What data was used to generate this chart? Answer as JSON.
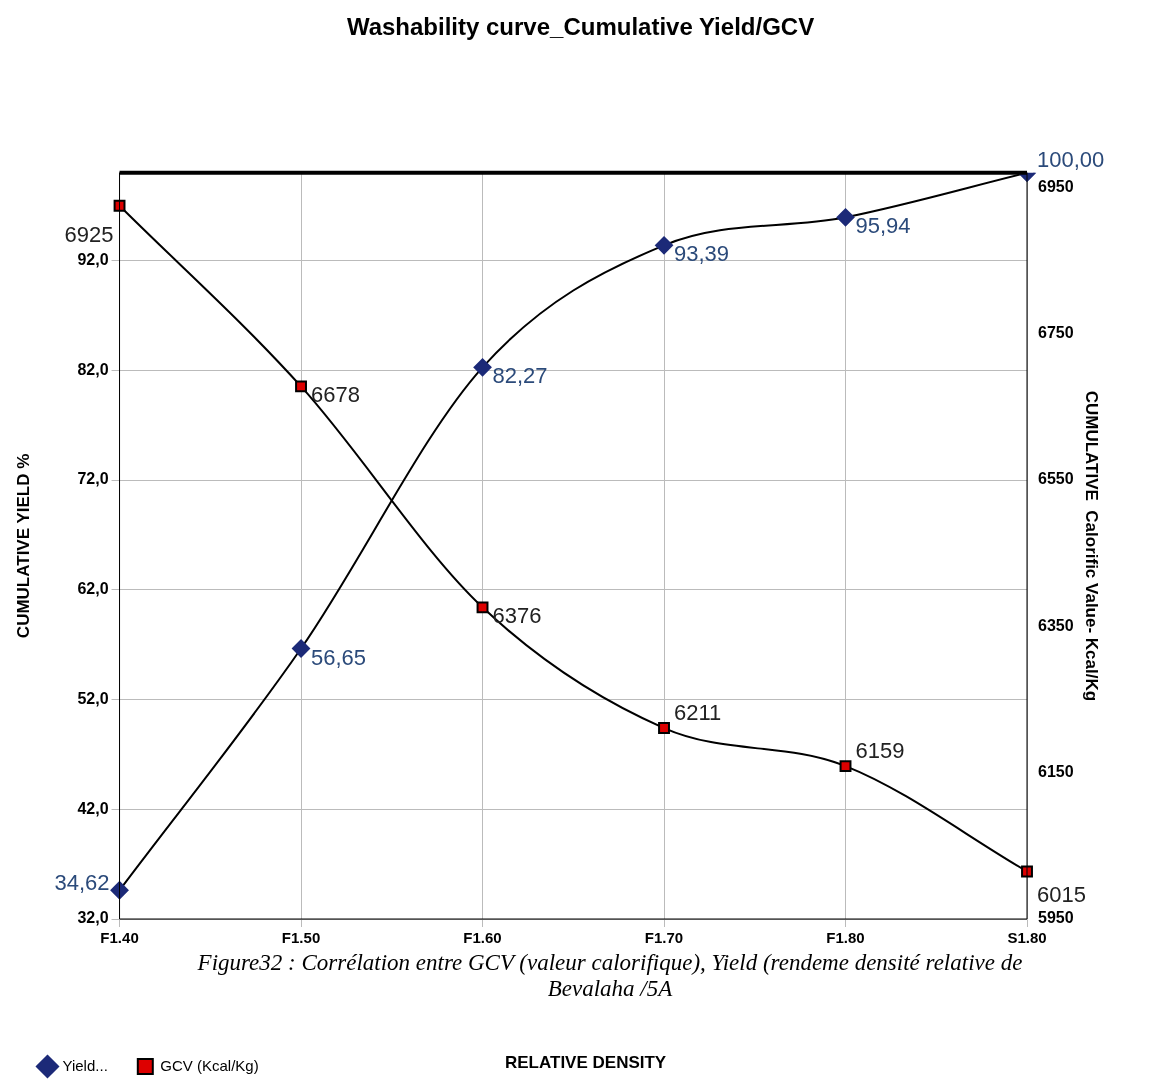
{
  "chart_data": {
    "type": "line",
    "title": "Washability curve_Cumulative Yield/GCV",
    "ylabel": "CUMULATIVE YIELD %",
    "y2label": "CUMULATIVE  Calorific Value- Kcal/Kg",
    "categories": [
      "F1.40",
      "F1.50",
      "F1.60",
      "F1.70",
      "F1.80",
      "S1.80"
    ],
    "series": [
      {
        "name": "Yield...",
        "color": "#1c2a78",
        "marker": "diamond",
        "values": [
          34.62,
          56.65,
          82.27,
          93.39,
          95.94,
          100.0
        ],
        "value_labels": [
          "34,62",
          "56,65",
          "82,27",
          "93,39",
          "95,94",
          "100,00"
        ]
      },
      {
        "name": "GCV (Kcal/Kg)",
        "color": "#dd0000",
        "marker": "square",
        "axis": "y2",
        "values": [
          6925,
          6678,
          6376,
          6211,
          6159,
          6015
        ],
        "value_labels": [
          "6925",
          "6678",
          "6376",
          "6211",
          "6159",
          "6015"
        ]
      }
    ],
    "ylim": [
      32,
      100
    ],
    "yticks": [
      {
        "value": 32,
        "label": "32,0"
      },
      {
        "value": 42,
        "label": "42,0"
      },
      {
        "value": 52,
        "label": "52,0"
      },
      {
        "value": 62,
        "label": "62,0"
      },
      {
        "value": 72,
        "label": "72,0"
      },
      {
        "value": 82,
        "label": "82,0"
      },
      {
        "value": 92,
        "label": "92,0"
      }
    ],
    "y2lim": [
      5950,
      6970
    ],
    "y2ticks": [
      5950,
      6150,
      6350,
      6550,
      6750,
      6950
    ],
    "grid": true,
    "legend": "bottom left",
    "annotations": [
      "Figure32 : Corrélation entre GCV (valeur calorifique), Yield (rendeme densité relative de Bevalaha /5A",
      "RELATIVE DENSITY"
    ]
  }
}
